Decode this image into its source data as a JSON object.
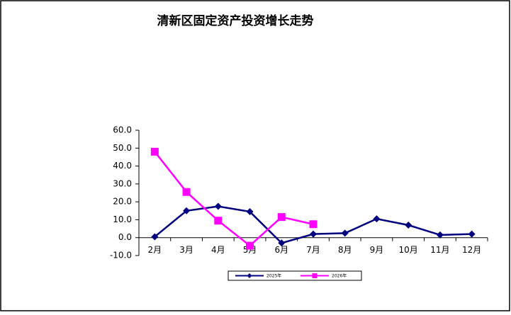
{
  "chart_data": {
    "type": "line",
    "title": "清新区固定资产投资增长走势",
    "categories": [
      "2月",
      "3月",
      "4月",
      "5月",
      "6月",
      "7月",
      "8月",
      "9月",
      "10月",
      "11月",
      "12月"
    ],
    "series": [
      {
        "name": "2025年",
        "color": "#000080",
        "marker": "diamond",
        "values": [
          0.5,
          15,
          17.5,
          14.5,
          -3,
          2,
          2.5,
          10.5,
          7,
          1.5,
          2
        ]
      },
      {
        "name": "2026年",
        "color": "#ff00ff",
        "marker": "square",
        "values": [
          48,
          25.5,
          9.5,
          -4.5,
          11.5,
          7.5,
          null,
          null,
          null,
          null,
          null
        ]
      }
    ],
    "ylim": [
      -10,
      60
    ],
    "yticks": [
      {
        "value": -10,
        "label": "-10.0"
      },
      {
        "value": 0,
        "label": "0.0"
      },
      {
        "value": 10,
        "label": "10.0"
      },
      {
        "value": 20,
        "label": "20.0"
      },
      {
        "value": 30,
        "label": "30.0"
      },
      {
        "value": 40,
        "label": "40.0"
      },
      {
        "value": 50,
        "label": "50.0"
      },
      {
        "value": 60,
        "label": "60.0"
      }
    ],
    "grid": false,
    "legend": "bottom"
  }
}
